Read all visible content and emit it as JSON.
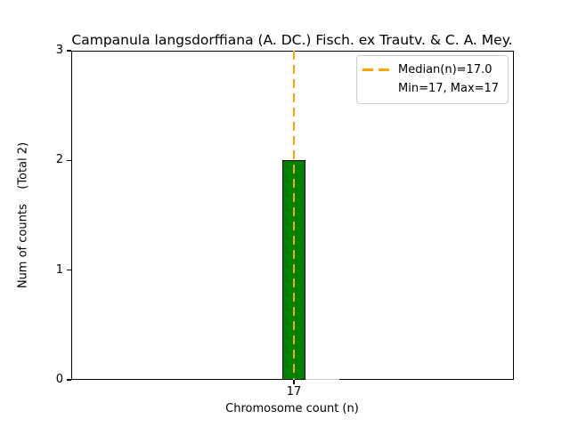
{
  "chart_data": {
    "type": "bar",
    "title": "Campanula langsdorffiana (A. DC.) Fisch. ex Trautv. & C. A. Mey.",
    "xlabel": "Chromosome count (n)",
    "ylabel": "Num of counts    (Total 2)",
    "categories": [
      "17"
    ],
    "values": [
      2
    ],
    "total": 2,
    "ylim": [
      0,
      3
    ],
    "yticks": [
      "0",
      "1",
      "2",
      "3"
    ],
    "grid": false,
    "bar_fill_color": "#008000",
    "bar_edge_color": "#000000",
    "median_line": {
      "value": 17.0,
      "color": "#FFA500",
      "style": "dashed",
      "linewidth": 2
    },
    "stats": {
      "median": 17.0,
      "min": 17,
      "max": 17
    },
    "legend": {
      "position": "upper-right",
      "entries": [
        {
          "label": "Median(n)=17.0",
          "handle": "orange-dashed-line"
        },
        {
          "label": "Min=17, Max=17",
          "handle": "none"
        }
      ]
    }
  }
}
